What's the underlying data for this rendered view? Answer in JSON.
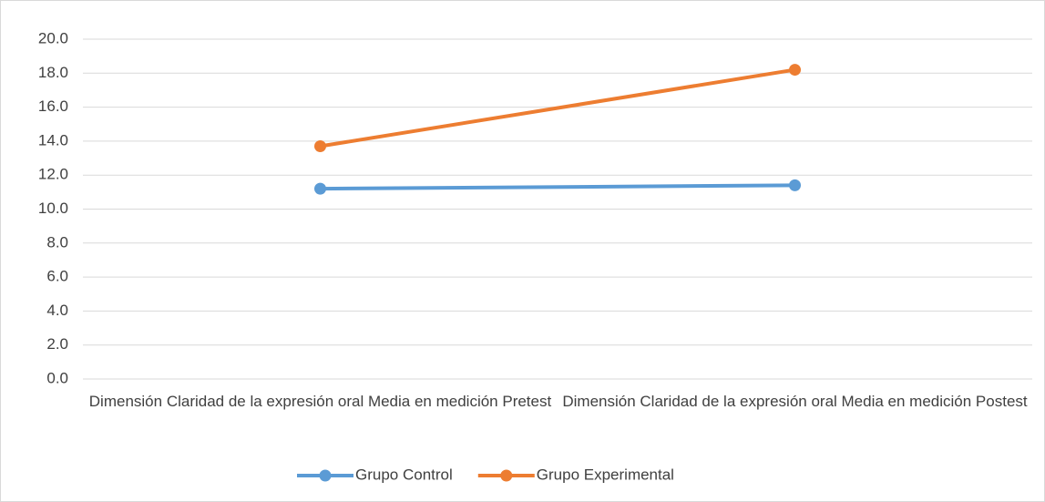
{
  "chart_data": {
    "type": "line",
    "categories": [
      "Dimensión Claridad de la expresión oral Media en medición Pretest",
      "Dimensión Claridad de la expresión oral Media en medición Postest"
    ],
    "series": [
      {
        "name": "Grupo Control",
        "color": "#5b9bd5",
        "values": [
          11.2,
          11.4
        ]
      },
      {
        "name": "Grupo Experimental",
        "color": "#ed7d31",
        "values": [
          13.7,
          18.2
        ]
      }
    ],
    "ylim": [
      0,
      20
    ],
    "yticks": [
      {
        "value": 0,
        "label": "0.0"
      },
      {
        "value": 2,
        "label": "2.0"
      },
      {
        "value": 4,
        "label": "4.0"
      },
      {
        "value": 6,
        "label": "6.0"
      },
      {
        "value": 8,
        "label": "8.0"
      },
      {
        "value": 10,
        "label": "10.0"
      },
      {
        "value": 12,
        "label": "12.0"
      },
      {
        "value": 14,
        "label": "14.0"
      },
      {
        "value": 16,
        "label": "16.0"
      },
      {
        "value": 18,
        "label": "18.0"
      },
      {
        "value": 20,
        "label": "20.0"
      }
    ],
    "grid": true,
    "legend": "bottom"
  }
}
